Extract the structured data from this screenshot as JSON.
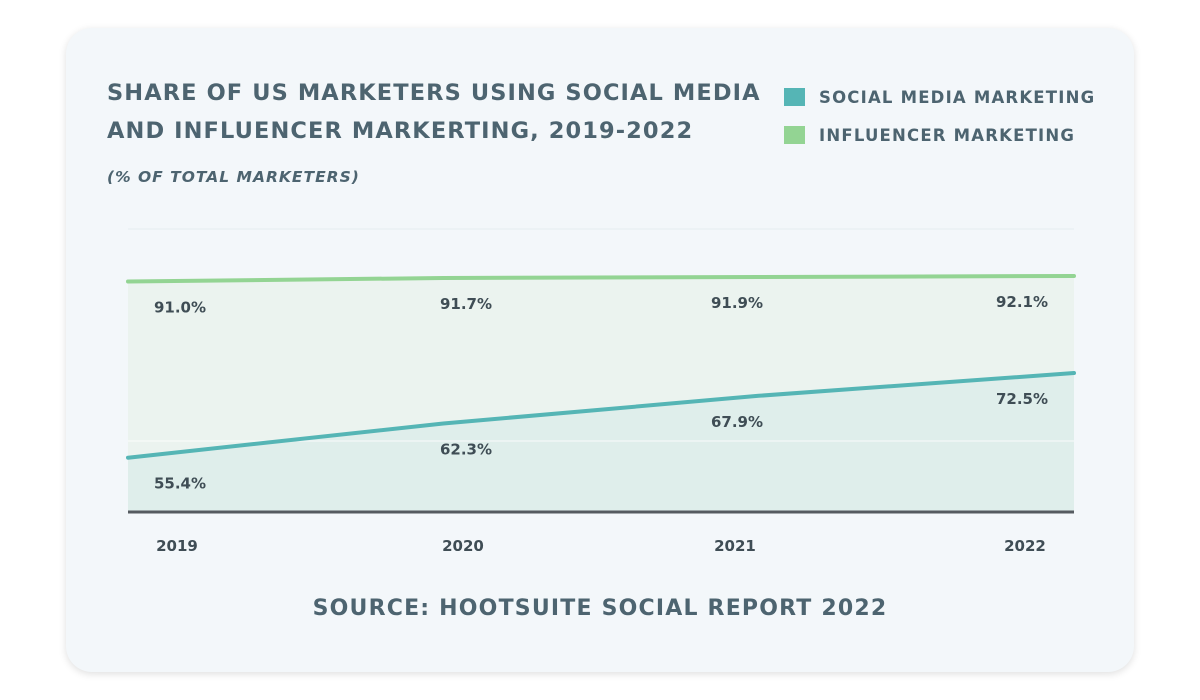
{
  "chart_data": {
    "type": "area",
    "title": "Share of US marketers using social media and influencer markerting, 2019-2022",
    "subtitle": "(% of total marketers)",
    "categories": [
      "2019",
      "2020",
      "2021",
      "2022"
    ],
    "series": [
      {
        "name": "Social media marketing",
        "values": [
          55.4,
          62.3,
          67.9,
          72.5
        ],
        "labels": [
          "55.4%",
          "62.3%",
          "67.9%",
          "72.5%"
        ],
        "color": "#55b5b5",
        "fill": "#dfeeeb"
      },
      {
        "name": "Influencer marketing",
        "values": [
          91.0,
          91.7,
          91.9,
          92.1
        ],
        "labels": [
          "91.0%",
          "91.7%",
          "91.9%",
          "92.1%"
        ],
        "color": "#93d493",
        "fill": "#ebf3ef"
      }
    ],
    "legend_position": "top-right",
    "grid": true,
    "source": "Source: Hootsuite Social Report 2022"
  },
  "colors": {
    "card_bg": "#f3f7fa",
    "text": "#4d6470",
    "axis": "#555b60"
  }
}
